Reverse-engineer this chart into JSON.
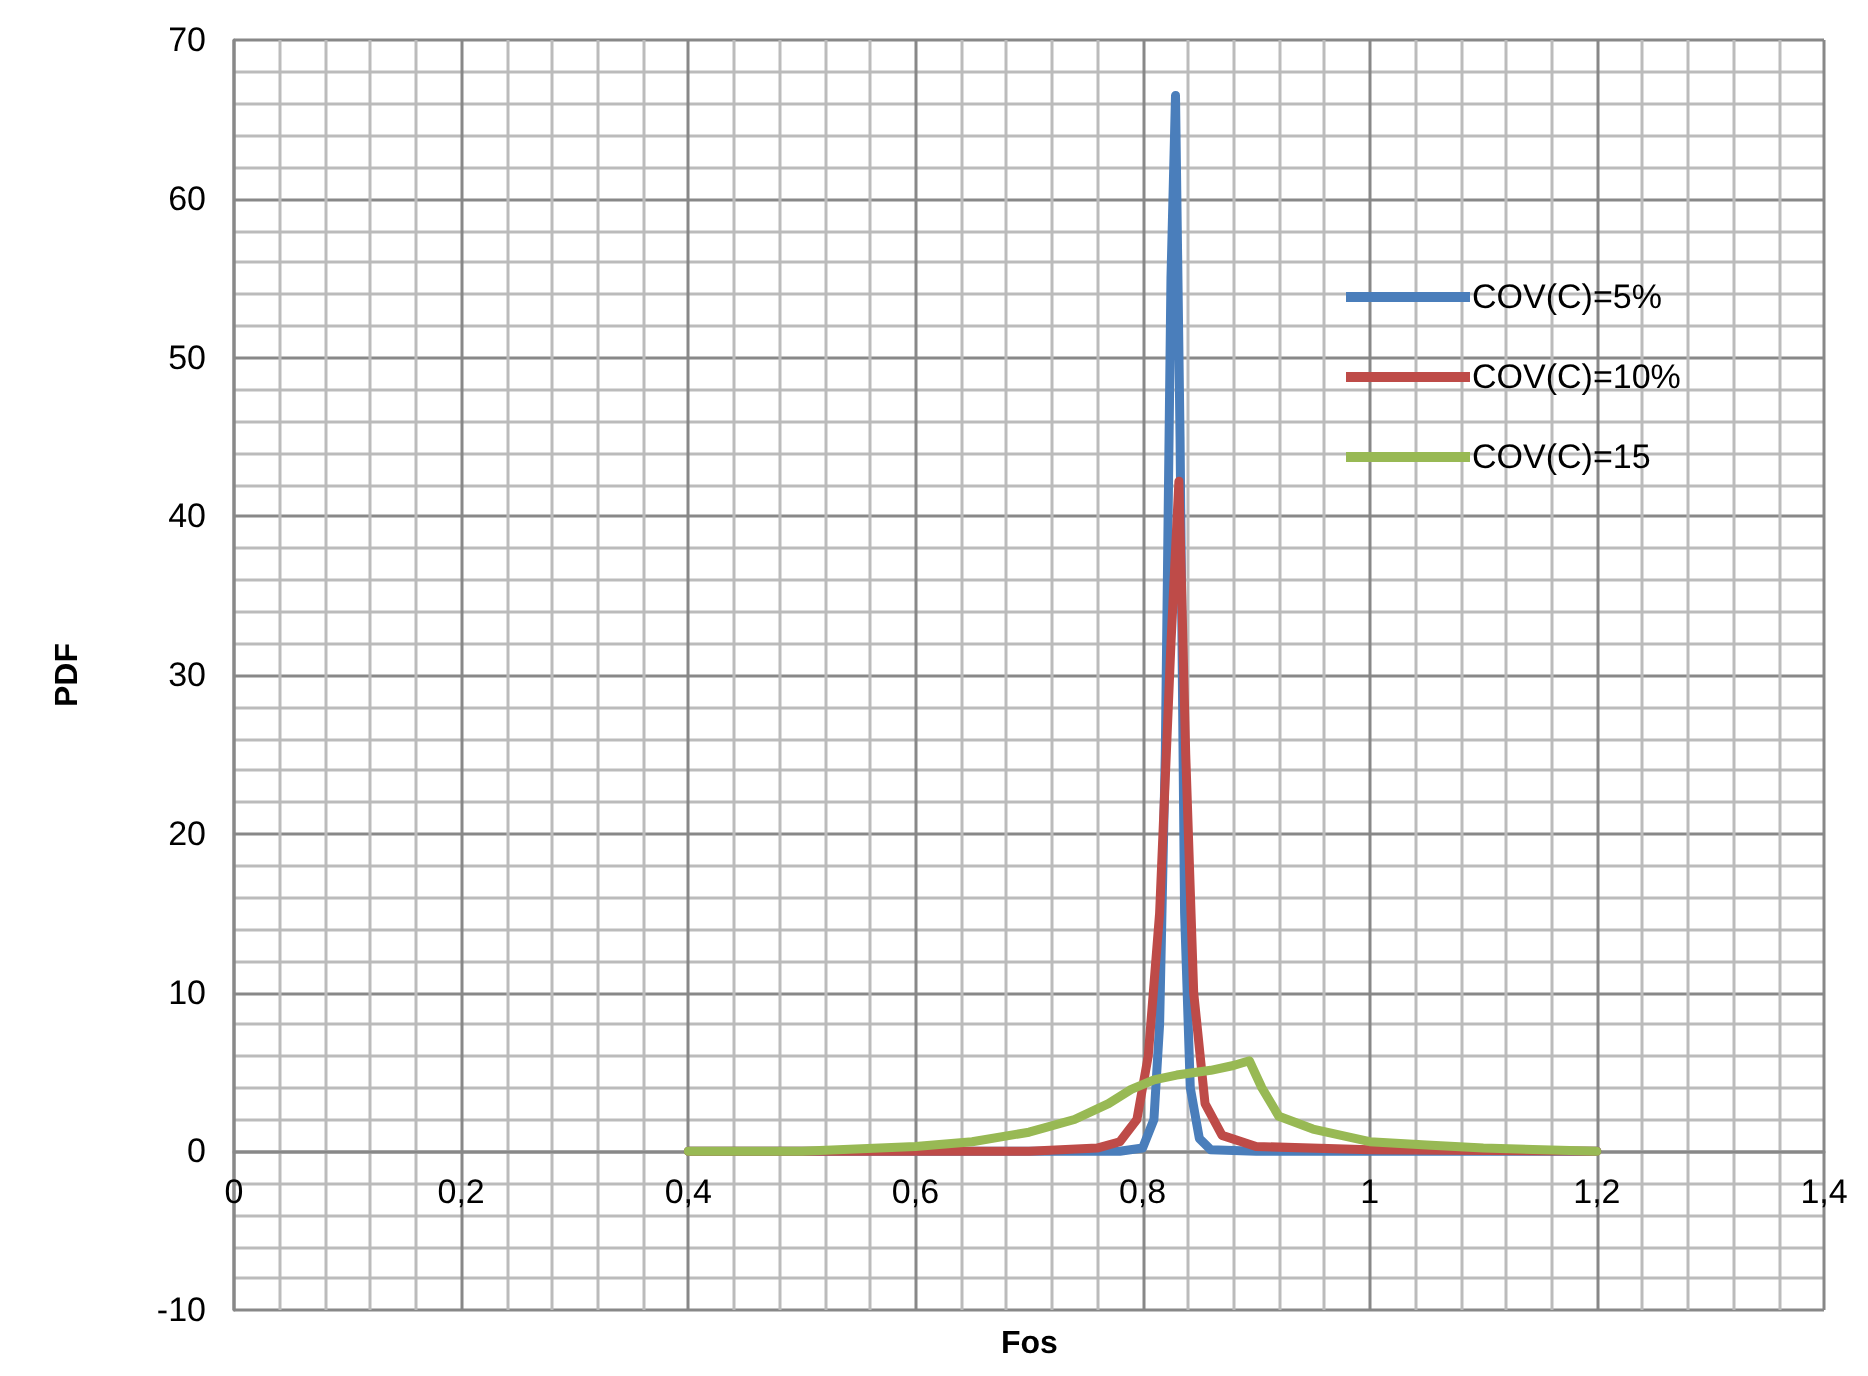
{
  "chart_data": {
    "type": "line",
    "xlabel": "Fos",
    "ylabel": "PDF",
    "xlim": [
      0,
      1.4
    ],
    "xticks": [
      {
        "value": 0,
        "label": "0"
      },
      {
        "value": 0.2,
        "label": "0,2"
      },
      {
        "value": 0.4,
        "label": "0,4"
      },
      {
        "value": 0.6,
        "label": "0,6"
      },
      {
        "value": 0.8,
        "label": "0,8"
      },
      {
        "value": 1,
        "label": "1"
      },
      {
        "value": 1.2,
        "label": "1,2"
      },
      {
        "value": 1.4,
        "label": "1,4"
      }
    ],
    "ylim": [
      -10,
      70
    ],
    "yticks": [
      -10,
      0,
      10,
      20,
      30,
      40,
      50,
      60,
      70
    ],
    "grid": true,
    "legend": "right",
    "marker": "none",
    "line_style": "solid",
    "series": [
      {
        "name": "COV(C)=5%",
        "color": "#4a7ebb",
        "x": [
          0.4,
          0.78,
          0.8,
          0.81,
          0.815,
          0.82,
          0.825,
          0.829,
          0.833,
          0.837,
          0.842,
          0.85,
          0.86,
          0.9,
          1.2
        ],
        "values": [
          0,
          0,
          0.2,
          2,
          8,
          25,
          55,
          66.5,
          45,
          15,
          4,
          0.8,
          0.1,
          0,
          0
        ]
      },
      {
        "name": "COV(C)=10%",
        "color": "#be4b48",
        "x": [
          0.4,
          0.7,
          0.76,
          0.78,
          0.795,
          0.805,
          0.815,
          0.825,
          0.832,
          0.838,
          0.845,
          0.855,
          0.87,
          0.9,
          1.0,
          1.2
        ],
        "values": [
          0,
          0,
          0.2,
          0.6,
          2,
          6,
          15,
          32,
          42.2,
          25,
          10,
          3,
          1,
          0.3,
          0.1,
          0
        ]
      },
      {
        "name": "COV(C)=15",
        "color": "#98b954",
        "x": [
          0.4,
          0.5,
          0.6,
          0.65,
          0.7,
          0.74,
          0.77,
          0.79,
          0.81,
          0.83,
          0.86,
          0.88,
          0.894,
          0.905,
          0.92,
          0.95,
          1.0,
          1.05,
          1.1,
          1.2
        ],
        "values": [
          0,
          0,
          0.3,
          0.6,
          1.2,
          2,
          3,
          3.9,
          4.5,
          4.8,
          5.1,
          5.4,
          5.7,
          4,
          2.2,
          1.4,
          0.6,
          0.4,
          0.2,
          0
        ]
      }
    ]
  }
}
